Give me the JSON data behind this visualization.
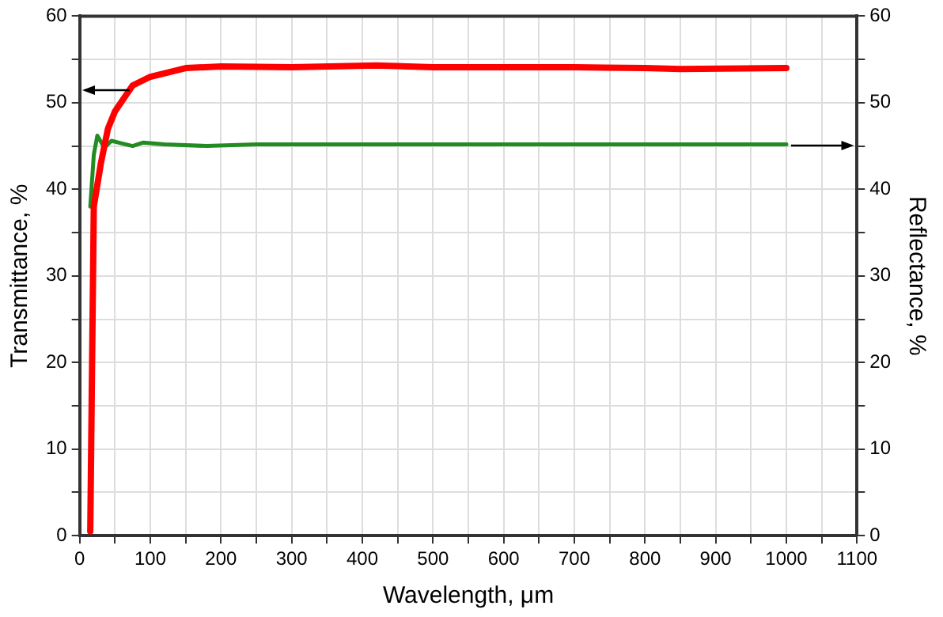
{
  "chart_data": {
    "type": "line",
    "xlabel": "Wavelength, μm",
    "ylabel": "Transmittance, %",
    "y2label": "Reflectance, %",
    "xlim": [
      0,
      1100
    ],
    "xticks": [
      0,
      {
        "value": 50,
        "label": null
      },
      100,
      {
        "value": 150,
        "label": null
      },
      200,
      {
        "value": 250,
        "label": null
      },
      300,
      {
        "value": 350,
        "label": null
      },
      400,
      {
        "value": 450,
        "label": null
      },
      500,
      {
        "value": 550,
        "label": null
      },
      600,
      {
        "value": 650,
        "label": null
      },
      700,
      {
        "value": 750,
        "label": null
      },
      800,
      {
        "value": 850,
        "label": null
      },
      900,
      {
        "value": 950,
        "label": null
      },
      1000,
      {
        "value": 1050,
        "label": null
      },
      1100
    ],
    "ylim": [
      0,
      60
    ],
    "yticks": [
      0,
      {
        "value": 5,
        "label": null
      },
      10,
      {
        "value": 15,
        "label": null
      },
      20,
      {
        "value": 25,
        "label": null
      },
      30,
      {
        "value": 35,
        "label": null
      },
      40,
      {
        "value": 45,
        "label": null
      },
      50,
      {
        "value": 55,
        "label": null
      },
      60
    ],
    "y2lim": [
      0,
      60
    ],
    "y2ticks": [
      0,
      {
        "value": 5,
        "label": null
      },
      10,
      {
        "value": 15,
        "label": null
      },
      20,
      {
        "value": 25,
        "label": null
      },
      30,
      {
        "value": 35,
        "label": null
      },
      40,
      {
        "value": 45,
        "label": null
      },
      50,
      {
        "value": 55,
        "label": null
      },
      60
    ],
    "grid": true,
    "marker": "none",
    "line_style": "solid",
    "series": [
      {
        "color": "#ff0000",
        "x": [
          15,
          20,
          30,
          40,
          50,
          75,
          100,
          150,
          200,
          300,
          420,
          500,
          700,
          800,
          850,
          1000
        ],
        "values": [
          0.5,
          38,
          43,
          47,
          49,
          52,
          53,
          54,
          54.2,
          54.1,
          54.3,
          54.1,
          54.1,
          54,
          53.9,
          54
        ]
      },
      {
        "color": "#228b22",
        "axis": "y2",
        "x": [
          15,
          20,
          25,
          35,
          45,
          60,
          75,
          90,
          120,
          180,
          250,
          1000
        ],
        "values": [
          38,
          44,
          46.2,
          44.8,
          45.6,
          45.3,
          45,
          45.4,
          45.2,
          45,
          45.2,
          45.2
        ]
      }
    ]
  }
}
